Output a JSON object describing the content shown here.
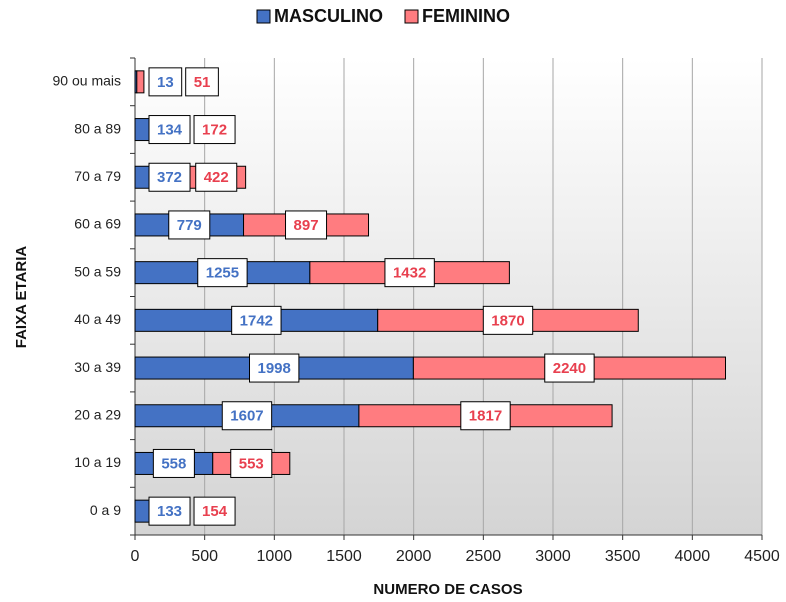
{
  "chart_data": {
    "type": "bar",
    "orientation": "horizontal",
    "stacked": true,
    "x_label": "NUMERO DE CASOS",
    "y_label": "FAIXA ETARIA",
    "categories": [
      "0 a 9",
      "10 a 19",
      "20 a 29",
      "30 a 39",
      "40 a 49",
      "50 a 59",
      "60 a 69",
      "70 a 79",
      "80 a 89",
      "90 ou mais"
    ],
    "series": [
      {
        "name": "MASCULINO",
        "color": "#4472c4",
        "label_color": "#4472c4",
        "values": [
          133,
          558,
          1607,
          1998,
          1742,
          1255,
          779,
          372,
          134,
          13
        ]
      },
      {
        "name": "FEMININO",
        "color": "#ff7c80",
        "label_color": "#e8404f",
        "values": [
          154,
          553,
          1817,
          2240,
          1870,
          1432,
          897,
          422,
          172,
          51
        ]
      }
    ],
    "xlim": [
      0,
      4500
    ],
    "xticks": [
      0,
      500,
      1000,
      1500,
      2000,
      2500,
      3000,
      3500,
      4000,
      4500
    ],
    "grid": true,
    "legend": "top"
  }
}
